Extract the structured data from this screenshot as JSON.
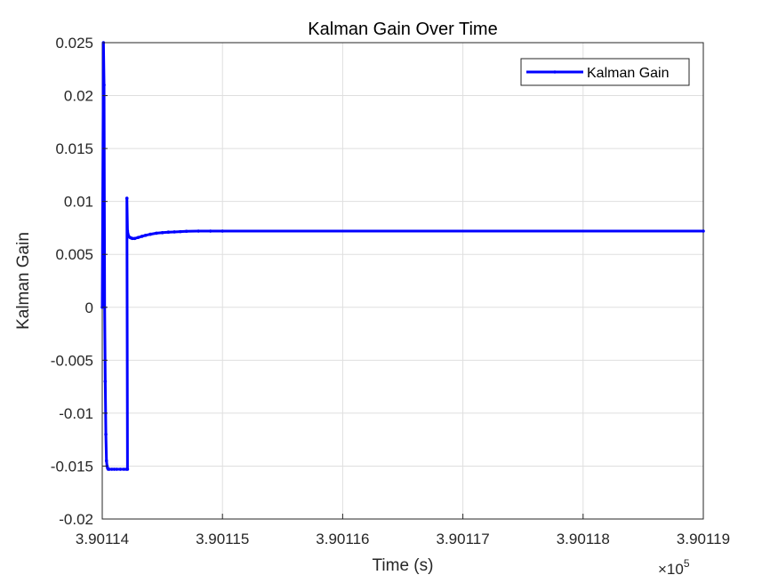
{
  "chart_data": {
    "type": "line",
    "title": "Kalman Gain Over Time",
    "xlabel": "Time (s)",
    "ylabel": "Kalman Gain",
    "x_exponent_label": "×10",
    "x_exponent_power": "5",
    "xlim": [
      3.90114,
      3.90119
    ],
    "ylim": [
      -0.02,
      0.025
    ],
    "x_ticks": [
      3.90114,
      3.90115,
      3.90116,
      3.90117,
      3.90118,
      3.90119
    ],
    "x_tick_labels": [
      "3.90114",
      "3.90115",
      "3.90116",
      "3.90117",
      "3.90118",
      "3.90119"
    ],
    "y_ticks": [
      -0.02,
      -0.015,
      -0.01,
      -0.005,
      0,
      0.005,
      0.01,
      0.015,
      0.02,
      0.025
    ],
    "y_tick_labels": [
      "-0.02",
      "-0.015",
      "-0.01",
      "-0.005",
      "0",
      "0.005",
      "0.01",
      "0.015",
      "0.02",
      "0.025"
    ],
    "grid": true,
    "legend_position": "top-right",
    "series": [
      {
        "name": "Kalman Gain",
        "color": "#0000ff",
        "x": [
          3.90114,
          3.9011401,
          3.90114015,
          3.9011402,
          3.90114025,
          3.9011403,
          3.90114035,
          3.9011404,
          3.90114045,
          3.9011405,
          3.9011406,
          3.9011408,
          3.901141,
          3.9011412,
          3.9011415,
          3.9011418,
          3.901142,
          3.9011421,
          3.90114205,
          3.9011421,
          3.9011422,
          3.9011423,
          3.9011424,
          3.9011425,
          3.9011427,
          3.901143,
          3.9011433,
          3.9011436,
          3.901144,
          3.9011445,
          3.901145,
          3.9011455,
          3.901146,
          3.9011465,
          3.901147,
          3.901148,
          3.901149,
          3.90115,
          3.90119
        ],
        "y": [
          0.0,
          0.025,
          0.021,
          0.0,
          -0.007,
          -0.012,
          -0.0145,
          -0.015,
          -0.0152,
          -0.0153,
          -0.0153,
          -0.0153,
          -0.0153,
          -0.0153,
          -0.0153,
          -0.0153,
          -0.0153,
          -0.0153,
          0.0103,
          0.0072,
          0.0067,
          0.0066,
          0.00655,
          0.0065,
          0.0065,
          0.0066,
          0.0067,
          0.0068,
          0.0069,
          0.007,
          0.00705,
          0.0071,
          0.00712,
          0.00715,
          0.00718,
          0.0072,
          0.0072,
          0.0072,
          0.0072
        ]
      }
    ]
  }
}
